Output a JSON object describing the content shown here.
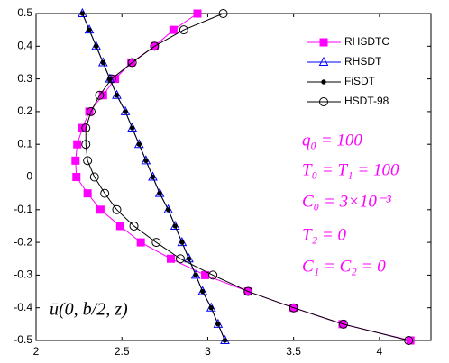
{
  "chart_data": {
    "type": "line",
    "xlim": [
      2,
      4.3
    ],
    "ylim": [
      -0.5,
      0.5
    ],
    "xticks": [
      2,
      2.5,
      3,
      3.5,
      4
    ],
    "yticks": [
      -0.5,
      -0.4,
      -0.3,
      -0.2,
      -0.1,
      0,
      0.1,
      0.2,
      0.3,
      0.4,
      0.5
    ],
    "legend": "upper right",
    "series": [
      {
        "name": "RHSDTC",
        "color": "#ff00ff",
        "marker": "square",
        "x": [
          2.94,
          2.8,
          2.69,
          2.555,
          2.46,
          2.39,
          2.31,
          2.27,
          2.24,
          2.23,
          2.235,
          2.3,
          2.375,
          2.49,
          2.61,
          2.785,
          2.985,
          3.235,
          3.5,
          3.785,
          4.18
        ],
        "y": [
          0.5,
          0.45,
          0.4,
          0.35,
          0.3,
          0.25,
          0.2,
          0.15,
          0.1,
          0.05,
          0,
          -0.05,
          -0.1,
          -0.15,
          -0.2,
          -0.25,
          -0.3,
          -0.35,
          -0.4,
          -0.45,
          -0.5
        ]
      },
      {
        "name": "RHSDT",
        "color": "#0000ff",
        "marker": "triangle",
        "x": [
          2.27,
          2.31,
          2.35,
          2.39,
          2.43,
          2.47,
          2.52,
          2.56,
          2.6,
          2.64,
          2.68,
          2.72,
          2.77,
          2.81,
          2.85,
          2.89,
          2.93,
          2.97,
          3.02,
          3.06,
          3.1
        ],
        "y": [
          0.5,
          0.45,
          0.4,
          0.35,
          0.3,
          0.25,
          0.2,
          0.15,
          0.1,
          0.05,
          0,
          -0.05,
          -0.1,
          -0.15,
          -0.2,
          -0.25,
          -0.3,
          -0.35,
          -0.4,
          -0.45,
          -0.5
        ]
      },
      {
        "name": "FiSDT",
        "color": "#000000",
        "marker": "dot",
        "x": [
          2.27,
          2.31,
          2.35,
          2.39,
          2.43,
          2.47,
          2.52,
          2.56,
          2.6,
          2.64,
          2.68,
          2.72,
          2.77,
          2.81,
          2.85,
          2.89,
          2.93,
          2.97,
          3.02,
          3.06,
          3.1
        ],
        "y": [
          0.5,
          0.45,
          0.4,
          0.35,
          0.3,
          0.25,
          0.2,
          0.15,
          0.1,
          0.05,
          0,
          -0.05,
          -0.1,
          -0.15,
          -0.2,
          -0.25,
          -0.3,
          -0.35,
          -0.4,
          -0.45,
          -0.5
        ]
      },
      {
        "name": "HSDT-98",
        "color": "#000000",
        "marker": "circle",
        "x": [
          3.09,
          2.86,
          2.69,
          2.56,
          2.44,
          2.37,
          2.32,
          2.29,
          2.29,
          2.3,
          2.34,
          2.4,
          2.47,
          2.57,
          2.7,
          2.84,
          3.03,
          3.235,
          3.5,
          3.79,
          4.17
        ],
        "y": [
          0.5,
          0.45,
          0.4,
          0.35,
          0.3,
          0.25,
          0.2,
          0.15,
          0.1,
          0.05,
          0,
          -0.05,
          -0.1,
          -0.15,
          -0.2,
          -0.25,
          -0.3,
          -0.35,
          -0.4,
          -0.45,
          -0.5
        ]
      }
    ],
    "annotations": [
      "q₀ = 100",
      "T₀ = T₁ = 100",
      "C₀ = 3×10⁻³",
      "T₂ = 0",
      "C₁ = C₂ = 0"
    ],
    "axis_label": "ū(0, b/2, z)"
  }
}
